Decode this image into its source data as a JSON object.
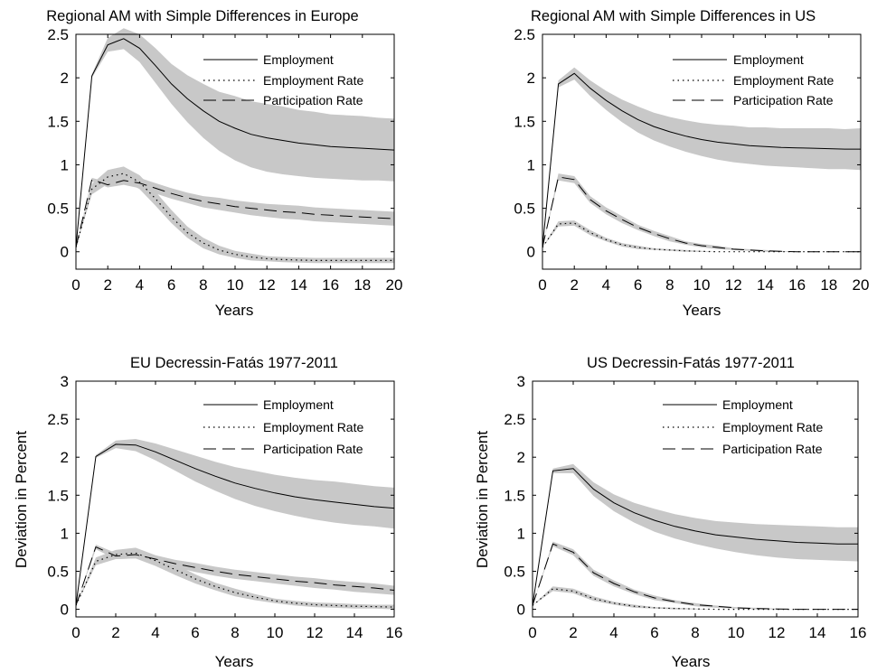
{
  "chart_data": [
    {
      "type": "line",
      "title": "Regional AM  with Simple Differences in Europe",
      "xlabel": "Years",
      "ylabel": "",
      "xlim": [
        0,
        20
      ],
      "ylim": [
        -0.2,
        2.5
      ],
      "xticks": [
        0,
        2,
        4,
        6,
        8,
        10,
        12,
        14,
        16,
        18,
        20
      ],
      "yticks": [
        0,
        0.5,
        1,
        1.5,
        2,
        2.5
      ],
      "xtick_labels": [
        "0",
        "2",
        "4",
        "6",
        "8",
        "10",
        "12",
        "14",
        "16",
        "18",
        "20"
      ],
      "ytick_labels": [
        "0",
        "0.5",
        "1",
        "1.5",
        "2",
        "2.5"
      ],
      "legend_position": "top-right",
      "confidence_bands": true,
      "x": [
        0,
        1,
        2,
        3,
        4,
        5,
        6,
        7,
        8,
        9,
        10,
        11,
        12,
        13,
        14,
        15,
        16,
        17,
        18,
        19,
        20
      ],
      "series": [
        {
          "name": "Employment",
          "style": "solid",
          "values": [
            0.05,
            2.02,
            2.38,
            2.45,
            2.34,
            2.14,
            1.93,
            1.76,
            1.62,
            1.5,
            1.42,
            1.35,
            1.31,
            1.28,
            1.25,
            1.23,
            1.21,
            1.2,
            1.19,
            1.18,
            1.17
          ],
          "band_lower": [
            0.05,
            2.0,
            2.3,
            2.33,
            2.18,
            1.94,
            1.7,
            1.49,
            1.31,
            1.16,
            1.05,
            0.97,
            0.92,
            0.89,
            0.87,
            0.85,
            0.84,
            0.83,
            0.82,
            0.82,
            0.81
          ],
          "band_upper": [
            0.05,
            2.04,
            2.46,
            2.57,
            2.5,
            2.34,
            2.16,
            2.03,
            1.93,
            1.84,
            1.79,
            1.73,
            1.7,
            1.67,
            1.63,
            1.61,
            1.58,
            1.57,
            1.56,
            1.54,
            1.53
          ]
        },
        {
          "name": "Employment Rate",
          "style": "dotted",
          "values": [
            0.05,
            0.72,
            0.86,
            0.9,
            0.8,
            0.61,
            0.4,
            0.22,
            0.1,
            0.02,
            -0.03,
            -0.06,
            -0.08,
            -0.09,
            -0.095,
            -0.1,
            -0.1,
            -0.1,
            -0.1,
            -0.1,
            -0.1
          ],
          "band_lower": [
            0.05,
            0.66,
            0.78,
            0.82,
            0.72,
            0.53,
            0.33,
            0.16,
            0.04,
            -0.03,
            -0.07,
            -0.1,
            -0.11,
            -0.12,
            -0.125,
            -0.13,
            -0.13,
            -0.13,
            -0.13,
            -0.13,
            -0.13
          ],
          "band_upper": [
            0.05,
            0.78,
            0.94,
            0.98,
            0.88,
            0.69,
            0.48,
            0.29,
            0.16,
            0.07,
            0.01,
            -0.02,
            -0.05,
            -0.06,
            -0.065,
            -0.07,
            -0.07,
            -0.07,
            -0.07,
            -0.07,
            -0.07
          ]
        },
        {
          "name": "Participation Rate",
          "style": "dashed",
          "values": [
            0.05,
            0.83,
            0.77,
            0.82,
            0.79,
            0.73,
            0.67,
            0.62,
            0.58,
            0.55,
            0.52,
            0.5,
            0.48,
            0.46,
            0.45,
            0.43,
            0.42,
            0.41,
            0.4,
            0.39,
            0.38
          ],
          "band_lower": [
            0.05,
            0.81,
            0.74,
            0.77,
            0.73,
            0.67,
            0.61,
            0.56,
            0.51,
            0.48,
            0.45,
            0.42,
            0.4,
            0.38,
            0.37,
            0.35,
            0.34,
            0.33,
            0.32,
            0.31,
            0.3
          ],
          "band_upper": [
            0.05,
            0.85,
            0.8,
            0.87,
            0.85,
            0.79,
            0.73,
            0.68,
            0.64,
            0.62,
            0.59,
            0.57,
            0.55,
            0.54,
            0.53,
            0.51,
            0.5,
            0.49,
            0.48,
            0.47,
            0.46
          ]
        }
      ]
    },
    {
      "type": "line",
      "title": "Regional AM with Simple Differences in US",
      "xlabel": "Years",
      "ylabel": "",
      "xlim": [
        0,
        20
      ],
      "ylim": [
        -0.2,
        2.5
      ],
      "xticks": [
        0,
        2,
        4,
        6,
        8,
        10,
        12,
        14,
        16,
        18,
        20
      ],
      "yticks": [
        0,
        0.5,
        1,
        1.5,
        2,
        2.5
      ],
      "xtick_labels": [
        "0",
        "2",
        "4",
        "6",
        "8",
        "10",
        "12",
        "14",
        "16",
        "18",
        "20"
      ],
      "ytick_labels": [
        "0",
        "0.5",
        "1",
        "1.5",
        "2",
        "2.5"
      ],
      "legend_position": "top-right",
      "confidence_bands": true,
      "x": [
        0,
        1,
        2,
        3,
        4,
        5,
        6,
        7,
        8,
        9,
        10,
        11,
        12,
        13,
        14,
        15,
        16,
        17,
        18,
        19,
        20
      ],
      "series": [
        {
          "name": "Employment",
          "style": "solid",
          "values": [
            0.05,
            1.93,
            2.05,
            1.88,
            1.74,
            1.62,
            1.52,
            1.44,
            1.38,
            1.33,
            1.29,
            1.26,
            1.24,
            1.22,
            1.21,
            1.2,
            1.195,
            1.19,
            1.185,
            1.18,
            1.18
          ],
          "band_lower": [
            0.05,
            1.89,
            1.98,
            1.79,
            1.63,
            1.49,
            1.37,
            1.28,
            1.21,
            1.15,
            1.1,
            1.06,
            1.03,
            1.01,
            0.99,
            0.98,
            0.97,
            0.96,
            0.95,
            0.95,
            0.94
          ],
          "band_upper": [
            0.05,
            1.97,
            2.12,
            1.97,
            1.85,
            1.75,
            1.67,
            1.6,
            1.55,
            1.51,
            1.48,
            1.46,
            1.45,
            1.43,
            1.43,
            1.42,
            1.42,
            1.42,
            1.42,
            1.41,
            1.42
          ]
        },
        {
          "name": "Employment Rate",
          "style": "dotted",
          "values": [
            0.05,
            0.32,
            0.33,
            0.22,
            0.14,
            0.08,
            0.05,
            0.03,
            0.02,
            0.01,
            0.005,
            0.0,
            0.0,
            0.0,
            0.0,
            0.0,
            0.0,
            0.0,
            0.0,
            0.0,
            0.0
          ],
          "band_lower": [
            0.05,
            0.29,
            0.3,
            0.19,
            0.12,
            0.06,
            0.03,
            0.02,
            0.01,
            0.0,
            0.0,
            0.0,
            0.0,
            0.0,
            0.0,
            0.0,
            0.0,
            0.0,
            0.0,
            0.0,
            0.0
          ],
          "band_upper": [
            0.05,
            0.35,
            0.36,
            0.25,
            0.16,
            0.1,
            0.07,
            0.04,
            0.03,
            0.02,
            0.01,
            0.0,
            0.0,
            0.0,
            0.0,
            0.0,
            0.0,
            0.0,
            0.0,
            0.0,
            0.0
          ]
        },
        {
          "name": "Participation Rate",
          "style": "dashed",
          "values": [
            0.05,
            0.86,
            0.83,
            0.6,
            0.47,
            0.37,
            0.28,
            0.21,
            0.15,
            0.1,
            0.07,
            0.05,
            0.03,
            0.02,
            0.01,
            0.005,
            0.0,
            0.0,
            0.0,
            0.0,
            0.0
          ],
          "band_lower": [
            0.05,
            0.82,
            0.79,
            0.56,
            0.43,
            0.33,
            0.25,
            0.18,
            0.12,
            0.08,
            0.05,
            0.03,
            0.02,
            0.01,
            0.0,
            0.0,
            0.0,
            0.0,
            0.0,
            0.0,
            0.0
          ],
          "band_upper": [
            0.05,
            0.9,
            0.87,
            0.64,
            0.51,
            0.41,
            0.31,
            0.24,
            0.18,
            0.12,
            0.09,
            0.07,
            0.04,
            0.03,
            0.02,
            0.01,
            0.0,
            0.0,
            0.0,
            0.0,
            0.0
          ]
        }
      ]
    },
    {
      "type": "line",
      "title": "EU Decressin-Fatás 1977-2011",
      "xlabel": "Years",
      "ylabel": "Deviation in Percent",
      "xlim": [
        0,
        16
      ],
      "ylim": [
        -0.1,
        3
      ],
      "xticks": [
        0,
        2,
        4,
        6,
        8,
        10,
        12,
        14,
        16
      ],
      "yticks": [
        0,
        0.5,
        1,
        1.5,
        2,
        2.5,
        3
      ],
      "xtick_labels": [
        "0",
        "2",
        "4",
        "6",
        "8",
        "10",
        "12",
        "14",
        "16"
      ],
      "ytick_labels": [
        "0",
        "0.5",
        "1",
        "1.5",
        "2",
        "2.5",
        "3"
      ],
      "legend_position": "top-right",
      "confidence_bands": true,
      "x": [
        0,
        1,
        2,
        3,
        4,
        5,
        6,
        7,
        8,
        9,
        10,
        11,
        12,
        13,
        14,
        15,
        16
      ],
      "series": [
        {
          "name": "Employment",
          "style": "solid",
          "values": [
            0.05,
            2.01,
            2.17,
            2.16,
            2.07,
            1.96,
            1.85,
            1.75,
            1.66,
            1.59,
            1.53,
            1.48,
            1.44,
            1.41,
            1.38,
            1.35,
            1.33
          ],
          "band_lower": [
            0.05,
            1.99,
            2.12,
            2.08,
            1.96,
            1.82,
            1.68,
            1.56,
            1.45,
            1.36,
            1.29,
            1.23,
            1.18,
            1.14,
            1.11,
            1.09,
            1.06
          ],
          "band_upper": [
            0.05,
            2.03,
            2.22,
            2.24,
            2.18,
            2.1,
            2.02,
            1.94,
            1.87,
            1.82,
            1.77,
            1.73,
            1.7,
            1.68,
            1.65,
            1.62,
            1.6
          ]
        },
        {
          "name": "Employment Rate",
          "style": "dotted",
          "values": [
            0.05,
            0.63,
            0.72,
            0.74,
            0.64,
            0.52,
            0.4,
            0.3,
            0.22,
            0.16,
            0.11,
            0.08,
            0.06,
            0.05,
            0.04,
            0.035,
            0.03
          ],
          "band_lower": [
            0.05,
            0.58,
            0.66,
            0.67,
            0.57,
            0.45,
            0.34,
            0.25,
            0.17,
            0.12,
            0.08,
            0.05,
            0.03,
            0.02,
            0.01,
            0.01,
            0.0
          ],
          "band_upper": [
            0.05,
            0.68,
            0.78,
            0.81,
            0.71,
            0.59,
            0.46,
            0.35,
            0.27,
            0.2,
            0.14,
            0.11,
            0.09,
            0.08,
            0.07,
            0.06,
            0.06
          ]
        },
        {
          "name": "Participation Rate",
          "style": "dashed",
          "values": [
            0.05,
            0.82,
            0.7,
            0.72,
            0.66,
            0.6,
            0.55,
            0.5,
            0.46,
            0.43,
            0.4,
            0.37,
            0.35,
            0.32,
            0.3,
            0.28,
            0.25
          ],
          "band_lower": [
            0.05,
            0.79,
            0.66,
            0.67,
            0.61,
            0.55,
            0.49,
            0.44,
            0.4,
            0.37,
            0.34,
            0.31,
            0.28,
            0.26,
            0.23,
            0.21,
            0.19
          ],
          "band_upper": [
            0.05,
            0.85,
            0.74,
            0.77,
            0.71,
            0.65,
            0.61,
            0.56,
            0.52,
            0.49,
            0.46,
            0.43,
            0.41,
            0.38,
            0.36,
            0.34,
            0.31
          ]
        }
      ]
    },
    {
      "type": "line",
      "title": "US Decressin-Fatás 1977-2011",
      "xlabel": "Years",
      "ylabel": "Deviation in Percent",
      "xlim": [
        0,
        16
      ],
      "ylim": [
        -0.1,
        3
      ],
      "xticks": [
        0,
        2,
        4,
        6,
        8,
        10,
        12,
        14,
        16
      ],
      "yticks": [
        0,
        0.5,
        1,
        1.5,
        2,
        2.5,
        3
      ],
      "xtick_labels": [
        "0",
        "2",
        "4",
        "6",
        "8",
        "10",
        "12",
        "14",
        "16"
      ],
      "ytick_labels": [
        "0",
        "0.5",
        "1",
        "1.5",
        "2",
        "2.5",
        "3"
      ],
      "legend_position": "top-right",
      "confidence_bands": true,
      "x": [
        0,
        1,
        2,
        3,
        4,
        5,
        6,
        7,
        8,
        9,
        10,
        11,
        12,
        13,
        14,
        15,
        16
      ],
      "series": [
        {
          "name": "Employment",
          "style": "solid",
          "values": [
            0.05,
            1.82,
            1.85,
            1.58,
            1.4,
            1.27,
            1.17,
            1.09,
            1.03,
            0.98,
            0.95,
            0.92,
            0.9,
            0.88,
            0.87,
            0.86,
            0.86
          ],
          "band_lower": [
            0.05,
            1.79,
            1.79,
            1.49,
            1.29,
            1.14,
            1.02,
            0.93,
            0.86,
            0.8,
            0.75,
            0.71,
            0.68,
            0.66,
            0.65,
            0.64,
            0.63
          ],
          "band_upper": [
            0.05,
            1.85,
            1.91,
            1.67,
            1.51,
            1.4,
            1.32,
            1.25,
            1.2,
            1.16,
            1.14,
            1.12,
            1.11,
            1.1,
            1.09,
            1.08,
            1.08
          ]
        },
        {
          "name": "Employment Rate",
          "style": "dotted",
          "values": [
            0.05,
            0.27,
            0.24,
            0.14,
            0.08,
            0.04,
            0.02,
            0.01,
            0.005,
            0.0,
            0.0,
            0.0,
            0.0,
            0.0,
            0.0,
            0.0,
            0.0
          ],
          "band_lower": [
            0.05,
            0.24,
            0.21,
            0.11,
            0.06,
            0.02,
            0.01,
            0.0,
            0.0,
            0.0,
            0.0,
            0.0,
            0.0,
            0.0,
            0.0,
            0.0,
            0.0
          ],
          "band_upper": [
            0.05,
            0.3,
            0.27,
            0.17,
            0.1,
            0.06,
            0.03,
            0.02,
            0.01,
            0.0,
            0.0,
            0.0,
            0.0,
            0.0,
            0.0,
            0.0,
            0.0
          ]
        },
        {
          "name": "Participation Rate",
          "style": "dashed",
          "values": [
            0.05,
            0.86,
            0.75,
            0.48,
            0.34,
            0.23,
            0.15,
            0.1,
            0.06,
            0.04,
            0.02,
            0.01,
            0.005,
            0.0,
            0.0,
            0.0,
            0.0
          ],
          "band_lower": [
            0.05,
            0.83,
            0.71,
            0.44,
            0.3,
            0.2,
            0.12,
            0.08,
            0.04,
            0.02,
            0.01,
            0.0,
            0.0,
            0.0,
            0.0,
            0.0,
            0.0
          ],
          "band_upper": [
            0.05,
            0.89,
            0.79,
            0.52,
            0.38,
            0.26,
            0.18,
            0.12,
            0.08,
            0.05,
            0.03,
            0.02,
            0.01,
            0.0,
            0.0,
            0.0,
            0.0
          ]
        }
      ]
    }
  ],
  "colors": {
    "band": "#c8c8c8",
    "line": "#000000",
    "axis": "#000000",
    "background": "#ffffff"
  }
}
